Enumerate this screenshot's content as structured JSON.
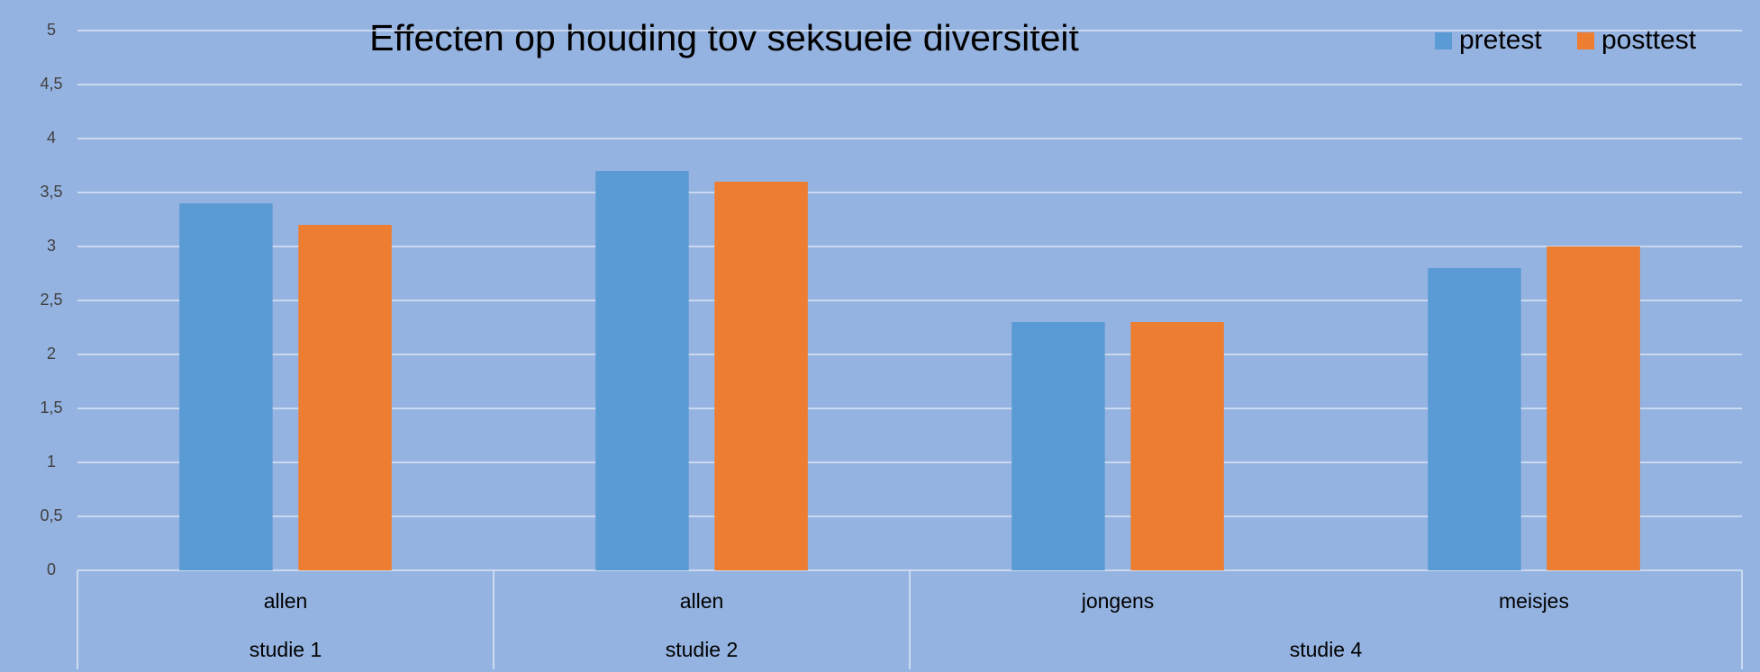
{
  "chart_data": {
    "type": "bar",
    "title": "Effecten op houding tov seksuele diversiteit",
    "categories": [
      "allen",
      "allen",
      "jongens",
      "meisjes"
    ],
    "category_groups": [
      "studie 1",
      "studie 2",
      "studie 4",
      null
    ],
    "series": [
      {
        "name": "pretest",
        "color": "#5b9bd5",
        "values": [
          3.4,
          3.7,
          2.3,
          2.8
        ]
      },
      {
        "name": "posttest",
        "color": "#ed7d31",
        "values": [
          3.2,
          3.6,
          2.3,
          3.0
        ]
      }
    ],
    "ylim": [
      0,
      5
    ],
    "yticks": [
      0,
      {
        "value": 0.5,
        "label": "0,5"
      },
      1,
      {
        "value": 1.5,
        "label": "1,5"
      },
      2,
      {
        "value": 2.5,
        "label": "2,5"
      },
      3,
      {
        "value": 3.5,
        "label": "3,5"
      },
      4,
      {
        "value": 4.5,
        "label": "4,5"
      },
      5
    ],
    "grid": true,
    "legend": "top-right"
  }
}
